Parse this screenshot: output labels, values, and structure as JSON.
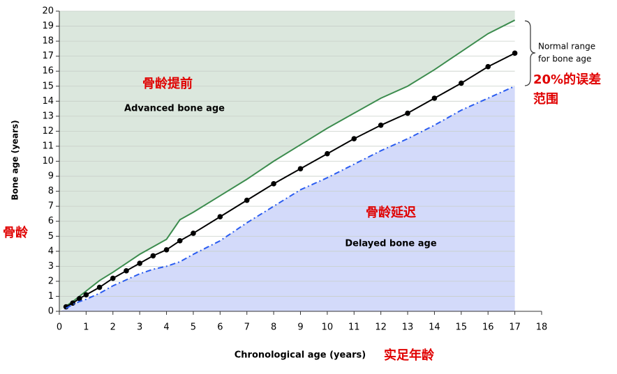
{
  "chart_data": {
    "type": "line",
    "x": [
      0.25,
      0.5,
      0.75,
      1,
      1.5,
      2,
      2.5,
      3,
      3.5,
      4,
      4.5,
      5,
      6,
      7,
      8,
      9,
      10,
      11,
      12,
      13,
      14,
      15,
      16,
      17
    ],
    "series": [
      {
        "color": "#3c8c4e",
        "fill": "#dbe7dd",
        "fill_side": "above",
        "values": [
          0.35,
          0.65,
          1.0,
          1.35,
          2.05,
          2.6,
          3.2,
          3.8,
          4.3,
          4.8,
          6.1,
          6.6,
          7.7,
          8.8,
          10.0,
          11.1,
          12.2,
          13.2,
          14.2,
          15.0,
          16.1,
          17.3,
          18.5,
          19.4
        ]
      },
      {
        "color": "#000000",
        "markers": true,
        "values": [
          0.3,
          0.55,
          0.85,
          1.1,
          1.6,
          2.2,
          2.7,
          3.2,
          3.7,
          4.1,
          4.7,
          5.2,
          6.3,
          7.4,
          8.5,
          9.5,
          10.5,
          11.5,
          12.4,
          13.2,
          14.2,
          15.2,
          16.3,
          17.2
        ]
      },
      {
        "color": "#2a5cf0",
        "dashed": true,
        "fill": "#d3dafa",
        "fill_side": "below",
        "values": [
          0.2,
          0.45,
          0.65,
          0.8,
          1.2,
          1.7,
          2.1,
          2.5,
          2.8,
          3.0,
          3.3,
          3.8,
          4.7,
          5.9,
          7.0,
          8.1,
          8.9,
          9.8,
          10.7,
          11.5,
          12.4,
          13.4,
          14.2,
          15.0
        ]
      }
    ],
    "xlim": [
      0,
      18
    ],
    "xticks": [
      0,
      1,
      2,
      3,
      4,
      5,
      6,
      7,
      8,
      9,
      10,
      11,
      12,
      13,
      14,
      15,
      16,
      17,
      18
    ],
    "ylim": [
      0,
      20
    ],
    "yticks": [
      0,
      1,
      2,
      3,
      4,
      5,
      6,
      7,
      8,
      9,
      10,
      11,
      12,
      13,
      14,
      15,
      16,
      17,
      18,
      19,
      20
    ],
    "grid": true,
    "x_label": "Chronological age (years)",
    "x_label_cn": "实足年龄",
    "y_label": "Bone age (years)",
    "y_label_cn": "骨龄",
    "annotations": {
      "advanced_cn": "骨龄提前",
      "advanced": "Advanced bone age",
      "delayed_cn": "骨龄延迟",
      "delayed": "Delayed bone age",
      "normal_range": [
        "Normal range",
        "for bone age"
      ],
      "error_range_cn": [
        "20%的误差",
        "范围"
      ]
    }
  }
}
